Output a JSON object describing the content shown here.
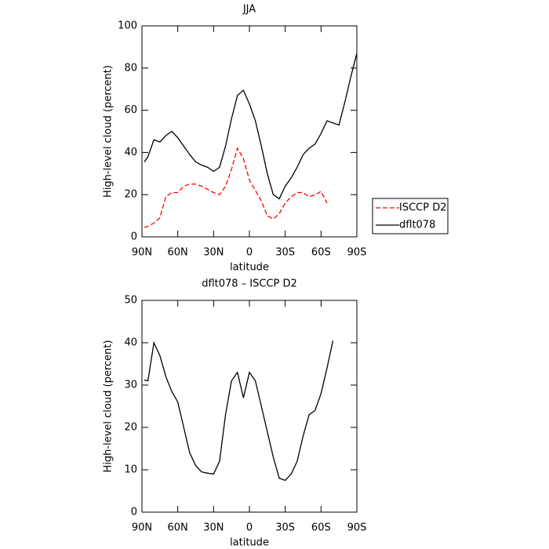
{
  "chart_data": [
    {
      "type": "line",
      "title": "JJA",
      "xlabel": "latitude",
      "ylabel": "High-level cloud (percent)",
      "x": [
        88,
        85,
        80,
        75,
        70,
        65,
        60,
        55,
        50,
        45,
        40,
        35,
        30,
        25,
        20,
        15,
        10,
        5,
        0,
        -5,
        -10,
        -15,
        -20,
        -25,
        -30,
        -35,
        -40,
        -45,
        -50,
        -55,
        -60,
        -65,
        -70,
        -75,
        -80,
        -85,
        -90
      ],
      "xlim": [
        90,
        -90
      ],
      "xticks": [
        {
          "value": 90,
          "label": "90N"
        },
        {
          "value": 60,
          "label": "60N"
        },
        {
          "value": 30,
          "label": "30N"
        },
        0,
        {
          "value": -30,
          "label": "30S"
        },
        {
          "value": -60,
          "label": "60S"
        },
        {
          "value": -90,
          "label": "90S"
        }
      ],
      "ylim": [
        0,
        100
      ],
      "yticks": [
        0,
        20,
        40,
        60,
        80,
        100
      ],
      "legend": "right",
      "series": [
        {
          "name": "ISCCP D2",
          "color": "#ff0000",
          "dashed": true,
          "values": [
            4.5,
            5,
            6.5,
            9,
            19,
            21,
            21,
            24,
            25,
            25,
            24,
            22.5,
            21,
            20,
            24,
            32,
            42,
            37,
            27,
            22,
            17,
            10,
            8.5,
            11,
            16,
            19,
            21,
            21,
            19,
            20,
            21.5,
            16,
            null,
            null,
            null,
            null,
            null
          ]
        },
        {
          "name": "dflt078",
          "color": "#000000",
          "dashed": false,
          "values": [
            35.5,
            38,
            46,
            45,
            48,
            50,
            47,
            43,
            39,
            35.5,
            34,
            33,
            31,
            33,
            43,
            56,
            67,
            69.5,
            63,
            55,
            43,
            30,
            20,
            18,
            24,
            28,
            33,
            39,
            42,
            44,
            49,
            55,
            54,
            53,
            64,
            76,
            87
          ]
        }
      ]
    },
    {
      "type": "line",
      "title": "dflt078 – ISCCP D2",
      "xlabel": "latitude",
      "ylabel": "High-level cloud (percent)",
      "x": [
        88,
        85,
        80,
        75,
        70,
        65,
        60,
        55,
        50,
        45,
        40,
        35,
        30,
        25,
        20,
        15,
        10,
        5,
        0,
        -5,
        -10,
        -15,
        -20,
        -25,
        -30,
        -35,
        -40,
        -45,
        -50,
        -55,
        -60,
        -65,
        -70
      ],
      "xlim": [
        90,
        -90
      ],
      "xticks": [
        {
          "value": 90,
          "label": "90N"
        },
        {
          "value": 60,
          "label": "60N"
        },
        {
          "value": 30,
          "label": "30N"
        },
        0,
        {
          "value": -30,
          "label": "30S"
        },
        {
          "value": -60,
          "label": "60S"
        },
        {
          "value": -90,
          "label": "90S"
        }
      ],
      "ylim": [
        0,
        50
      ],
      "yticks": [
        0,
        10,
        20,
        30,
        40,
        50
      ],
      "series": [
        {
          "color": "#000000",
          "dashed": false,
          "values": [
            31.2,
            31,
            40,
            37,
            32,
            28.5,
            26,
            20,
            14,
            11,
            9.5,
            9.2,
            9,
            12,
            23,
            31,
            33,
            27,
            33,
            31,
            25,
            19,
            13,
            8,
            7.5,
            9,
            12,
            18,
            23,
            24,
            28,
            34,
            40.5
          ]
        }
      ]
    }
  ]
}
